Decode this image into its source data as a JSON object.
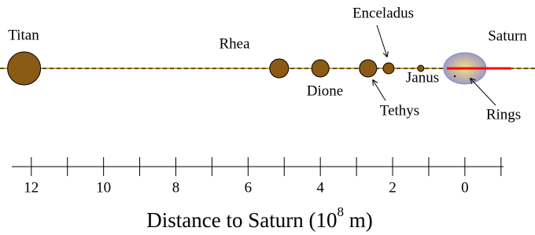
{
  "chart_data": {
    "type": "scatter",
    "bodies": [
      {
        "name": "Titan",
        "x": 12.2
      },
      {
        "name": "Rhea",
        "x": 5.14
      },
      {
        "name": "Dione",
        "x": 4.0
      },
      {
        "name": "Tethys",
        "x": 2.68
      },
      {
        "name": "Enceladus",
        "x": 2.11
      },
      {
        "name": "Janus",
        "x": 1.22
      },
      {
        "name": "Saturn",
        "x": 0
      }
    ],
    "rings": {
      "name": "Rings",
      "x": [
        0.5,
        -1.28
      ],
      "color": "#ff0000"
    },
    "moon_color": "#8b5a14",
    "xlim": [
      12.54,
      -1.07
    ],
    "xticks": [
      12,
      10,
      8,
      6,
      4,
      2,
      0
    ],
    "minor_xticks": [
      11,
      9,
      7,
      5,
      3,
      1,
      -1
    ],
    "xlabel": {
      "text": "Distance to Saturn (10",
      "sup": "8",
      "unit": " m)"
    }
  }
}
